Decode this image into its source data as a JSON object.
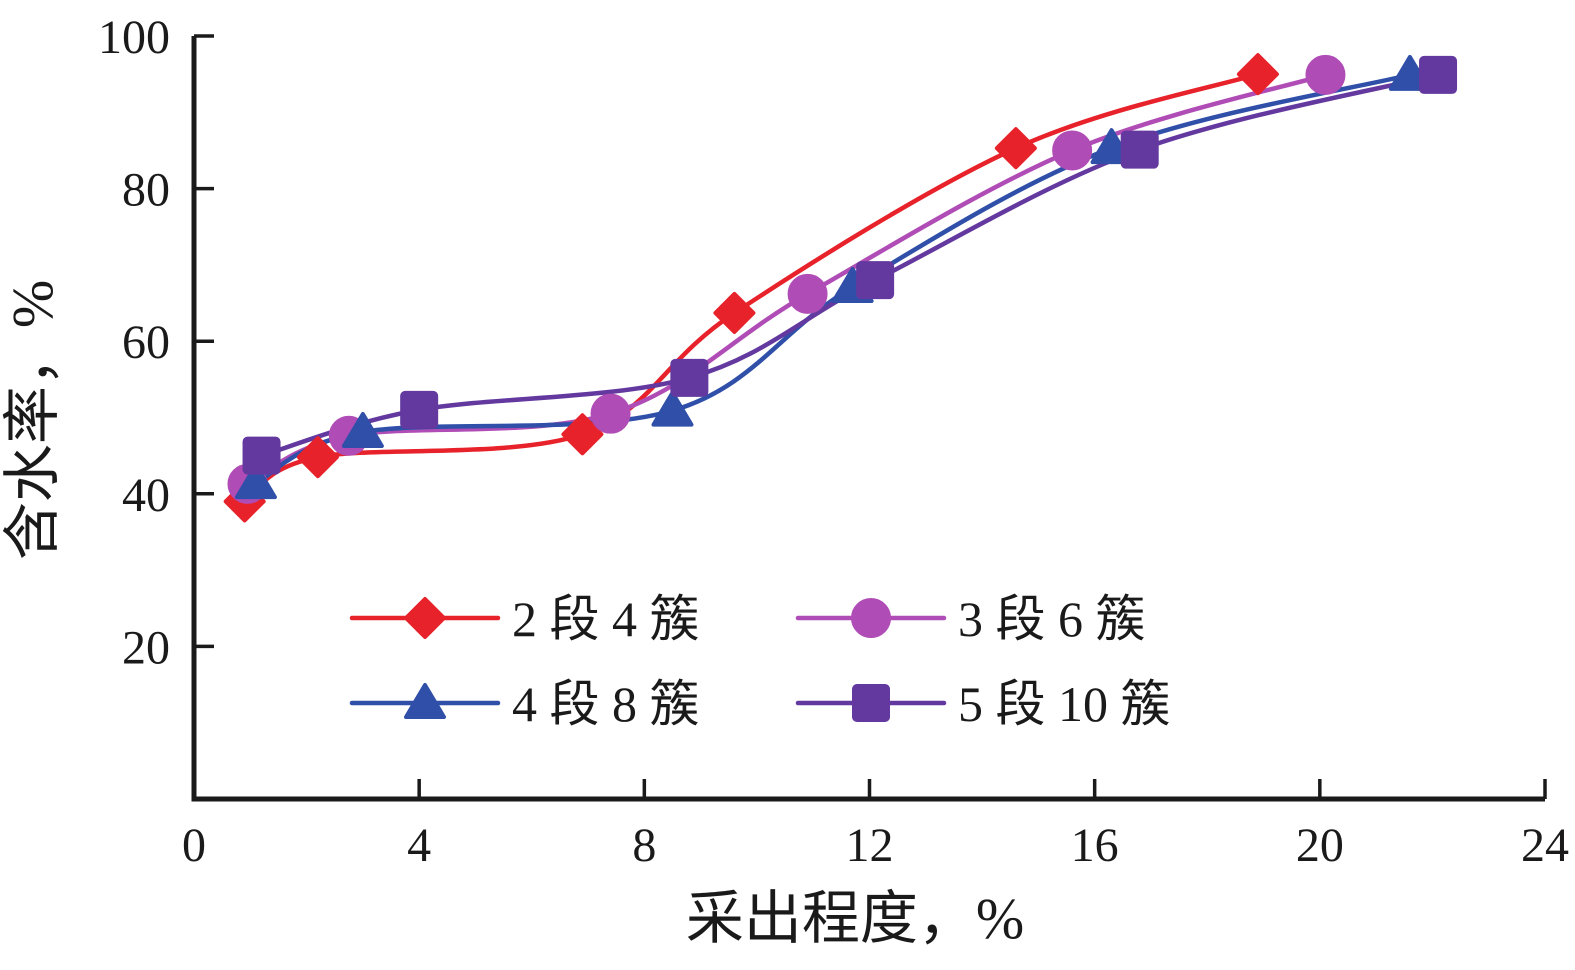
{
  "figure": {
    "background": "#ffffff",
    "axis_color": "#1a1a1a",
    "text_color": "#1a1a1a"
  },
  "chart_data": {
    "type": "line",
    "title": "",
    "xlabel": "采出程度，%",
    "ylabel": "含水率，%",
    "xlim": [
      0,
      24
    ],
    "ylim": [
      0,
      100
    ],
    "xticks": [
      0,
      4,
      8,
      12,
      16,
      20,
      24
    ],
    "yticks": [
      20,
      40,
      60,
      80,
      100
    ],
    "grid": false,
    "legend_position": "inside bottom-left, 2 columns x 2 rows",
    "series": [
      {
        "name": "2 段 4 簇",
        "color": "#e8222a",
        "marker": "diamond",
        "points": [
          [
            0.9,
            39.0
          ],
          [
            2.2,
            44.8
          ],
          [
            6.9,
            47.8
          ],
          [
            9.6,
            63.7
          ],
          [
            14.6,
            85.3
          ],
          [
            18.9,
            95.0
          ]
        ]
      },
      {
        "name": "3 段 6 簇",
        "color": "#b04cb5",
        "marker": "circle",
        "points": [
          [
            0.95,
            41.3
          ],
          [
            2.75,
            47.6
          ],
          [
            7.4,
            50.5
          ],
          [
            10.9,
            66.2
          ],
          [
            15.6,
            85.0
          ],
          [
            20.1,
            94.9
          ]
        ]
      },
      {
        "name": "4 段 8 簇",
        "color": "#2f4fa8",
        "marker": "triangle",
        "points": [
          [
            1.1,
            41.4
          ],
          [
            3.0,
            48.1
          ],
          [
            8.5,
            50.9
          ],
          [
            11.7,
            67.1
          ],
          [
            16.3,
            85.3
          ],
          [
            21.6,
            94.9
          ]
        ]
      },
      {
        "name": "5 段 10 簇",
        "color": "#63399f",
        "marker": "square",
        "points": [
          [
            1.2,
            45.0
          ],
          [
            4.0,
            51.0
          ],
          [
            8.8,
            55.2
          ],
          [
            12.1,
            68.0
          ],
          [
            16.8,
            85.1
          ],
          [
            22.1,
            94.9
          ]
        ]
      }
    ]
  }
}
